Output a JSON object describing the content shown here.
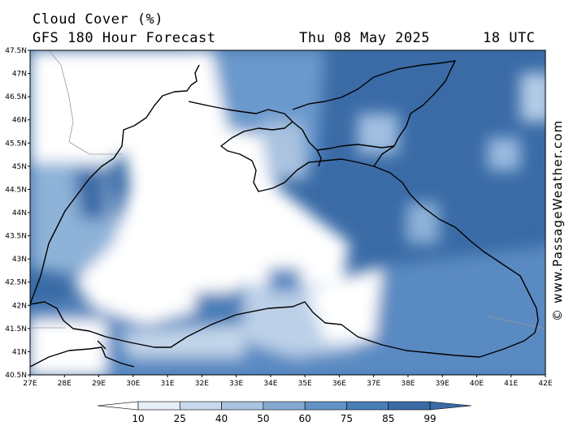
{
  "header": {
    "title": "Cloud Cover (%)",
    "subtitle": "GFS 180 Hour Forecast",
    "datetime": "Thu 08 May 2025",
    "time": "18 UTC"
  },
  "credit": "© www.PassageWeather.com",
  "map": {
    "lat_ticks": [
      "47.5N",
      "47N",
      "46.5N",
      "46N",
      "45.5N",
      "45N",
      "44.5N",
      "44N",
      "43.5N",
      "43N",
      "42.5N",
      "42N",
      "41.5N",
      "41N",
      "40.5N"
    ],
    "lon_ticks": [
      "27E",
      "28E",
      "29E",
      "30E",
      "31E",
      "32E",
      "33E",
      "34E",
      "35E",
      "36E",
      "37E",
      "38E",
      "39E",
      "40E",
      "41E",
      "42E"
    ]
  },
  "colorbar": {
    "labels": [
      "10",
      "25",
      "40",
      "50",
      "60",
      "75",
      "85",
      "99"
    ],
    "colors": [
      "#ffffff",
      "#e8eef7",
      "#c9d9ec",
      "#a9c3e0",
      "#86abd3",
      "#6393c6",
      "#4a7eb8",
      "#3a6ba6"
    ]
  },
  "colors": {
    "clear": "#ffffff",
    "overcast": "#3a6ba6",
    "coast": "#000000",
    "border": "#9a9a9a"
  }
}
